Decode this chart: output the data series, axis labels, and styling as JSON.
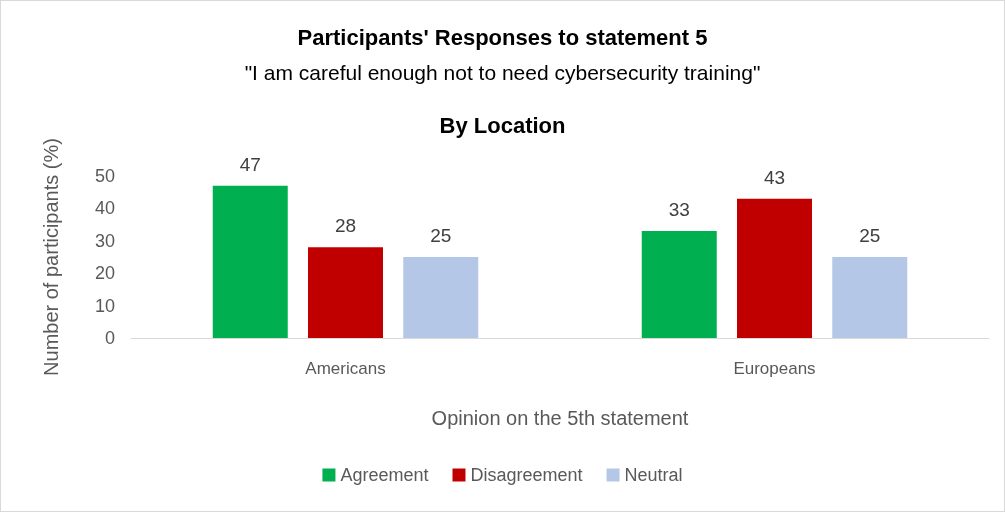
{
  "chart_data": {
    "type": "bar",
    "title": "Participants' Responses to statement 5",
    "subtitle": "\"I am careful enough not to need cybersecurity training\"",
    "annotations": [
      "By Location"
    ],
    "xlabel": "Opinion on the 5th statement",
    "ylabel": "Number of participants (%)",
    "categories": [
      "Americans",
      "Europeans"
    ],
    "series": [
      {
        "name": "Agreement",
        "color": "#00b050",
        "values": [
          47,
          33
        ]
      },
      {
        "name": "Disagreement",
        "color": "#c00000",
        "values": [
          28,
          43
        ]
      },
      {
        "name": "Neutral",
        "color": "#b4c7e7",
        "values": [
          25,
          25
        ]
      }
    ],
    "ylim": [
      0,
      50
    ],
    "yticks": [
      0,
      10,
      20,
      30,
      40,
      50
    ],
    "grid": false,
    "legend": "bottom",
    "data_labels": true
  }
}
